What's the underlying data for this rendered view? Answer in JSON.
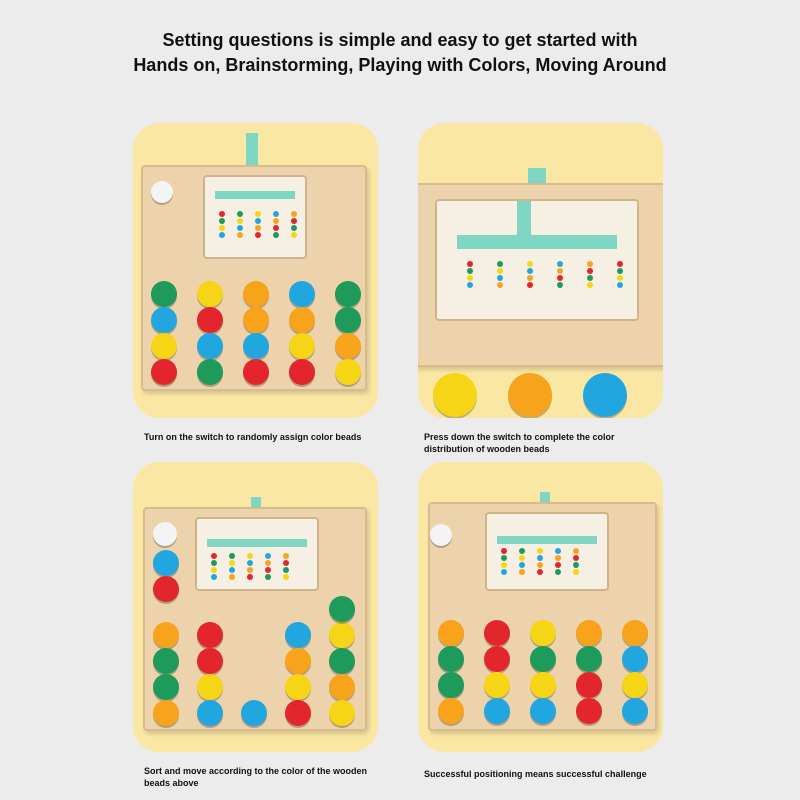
{
  "headline": {
    "line1": "Setting questions is simple and easy to get started with",
    "line2": "Hands on, Brainstorming, Playing with Colors, Moving Around"
  },
  "colors": {
    "green": "#1e9a5a",
    "blue": "#22a6e0",
    "yellow": "#f5d516",
    "red": "#e3262d",
    "orange": "#f7a41c",
    "white": "#f4f4f4",
    "panel": "#fbe7a4",
    "wood": "#ecd3ac",
    "switch": "#7fd6c3"
  },
  "panels": [
    {
      "caption": "Turn on the switch to randomly assign color beads",
      "columns": [
        [
          "green",
          "blue",
          "yellow",
          "red"
        ],
        [
          "yellow",
          "red",
          "blue",
          "green"
        ],
        [
          "orange",
          "orange",
          "blue",
          "red"
        ],
        [
          "blue",
          "orange",
          "yellow",
          "red"
        ],
        [
          "green",
          "green",
          "orange",
          "yellow"
        ]
      ]
    },
    {
      "caption": "Press down the switch to complete the color distribution of wooden beads",
      "big_discs": [
        "yellow",
        "orange",
        "blue"
      ]
    },
    {
      "caption": "Sort and move according to the color of the wooden beads above",
      "columns": [
        [
          "orange",
          "green",
          "green",
          "orange"
        ],
        [
          "red",
          "red",
          "yellow",
          "blue"
        ],
        [
          "blue"
        ],
        [
          "blue",
          "orange",
          "yellow",
          "red"
        ],
        [
          "yellow",
          "green",
          "orange",
          "yellow"
        ]
      ],
      "extra": [
        "white",
        "blue",
        "red",
        "green"
      ]
    },
    {
      "caption": "Successful positioning means successful challenge",
      "columns": [
        [
          "orange",
          "green",
          "green",
          "orange"
        ],
        [
          "red",
          "red",
          "yellow",
          "blue"
        ],
        [
          "yellow",
          "green",
          "yellow",
          "blue"
        ],
        [
          "orange",
          "green",
          "red",
          "red"
        ],
        [
          "orange",
          "blue",
          "yellow",
          "blue"
        ]
      ]
    }
  ]
}
